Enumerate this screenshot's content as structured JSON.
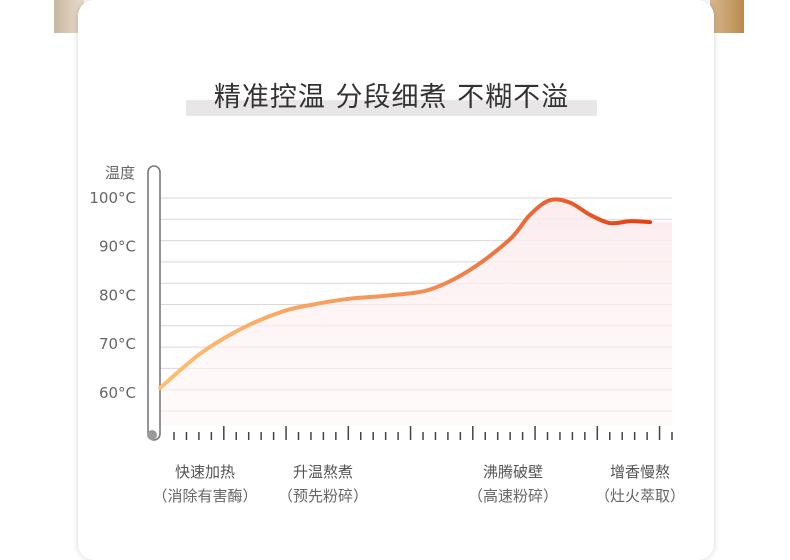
{
  "headline": "精准控温  分段细煮  不糊不溢",
  "chart_data": {
    "type": "line",
    "ylabel": "温度",
    "y_ticks": [
      "60°C",
      "70°C",
      "80°C",
      "90°C",
      "100°C"
    ],
    "y_tick_values": [
      60,
      70,
      80,
      90,
      100
    ],
    "ylim": [
      53,
      102
    ],
    "xlim": [
      0,
      100
    ],
    "series": [
      {
        "x": [
          0,
          8,
          16,
          24,
          30,
          38,
          46,
          54,
          62,
          70,
          74,
          78,
          82,
          86,
          90,
          94,
          98
        ],
        "values": [
          61,
          68,
          73,
          76.5,
          78,
          79.3,
          80,
          81.2,
          85.2,
          91.5,
          96.5,
          99.5,
          99,
          96.5,
          94.8,
          95.2,
          95
        ],
        "colors": [
          "#ffbf72",
          "#f28a52",
          "#e03c10"
        ]
      }
    ],
    "phases": [
      {
        "label": "快速加热",
        "sub": "（消除有害酶）"
      },
      {
        "label": "升温熬煮",
        "sub": "（预先粉碎）"
      },
      {
        "label": "沸腾破壁",
        "sub": "（高速粉碎）"
      },
      {
        "label": "增香慢熬",
        "sub": "（灶火萃取）"
      }
    ],
    "grid": true
  }
}
